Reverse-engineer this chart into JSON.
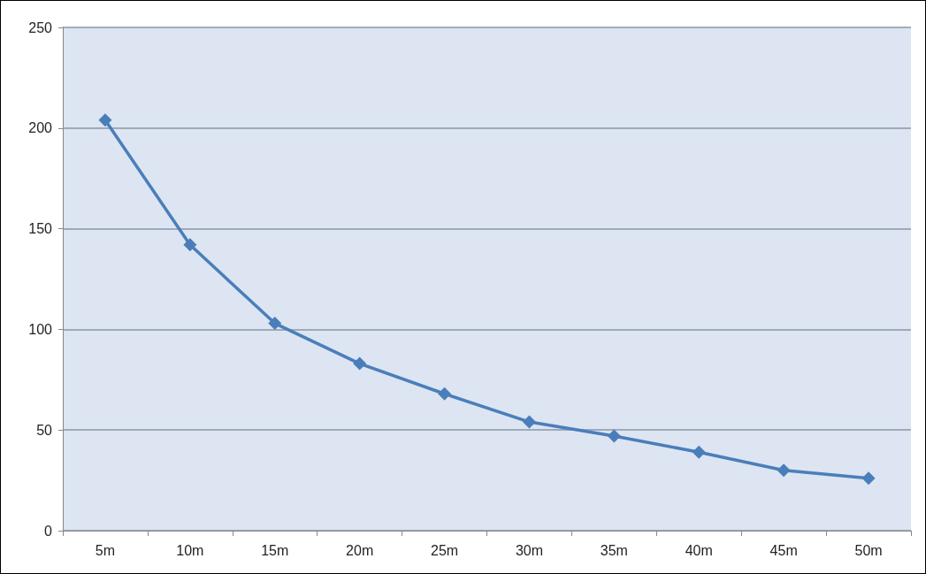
{
  "chart_data": {
    "type": "line",
    "categories": [
      "5m",
      "10m",
      "15m",
      "20m",
      "25m",
      "30m",
      "35m",
      "40m",
      "45m",
      "50m"
    ],
    "series": [
      {
        "color": "#4a7ebb",
        "values": [
          204,
          142,
          103,
          83,
          68,
          54,
          47,
          39,
          30,
          26
        ]
      }
    ],
    "ylim": [
      0,
      250
    ],
    "yticks": [
      0,
      50,
      100,
      150,
      200,
      250
    ],
    "grid": "y",
    "marker": "diamond",
    "line_style": "solid"
  }
}
